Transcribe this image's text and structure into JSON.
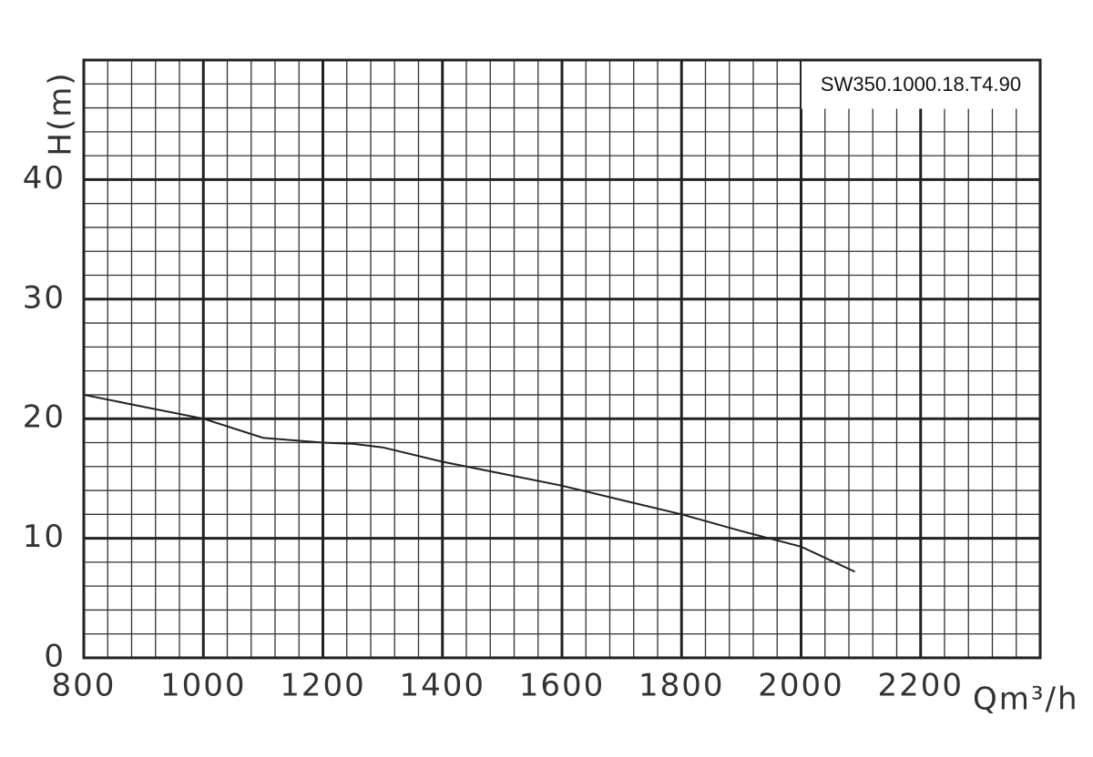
{
  "chart_data": {
    "type": "line",
    "annotation": "SW350.1000.18.T4.90",
    "xlabel": "Qm³/h",
    "ylabel": "H(m)",
    "x": [
      800,
      900,
      1000,
      1100,
      1200,
      1250,
      1300,
      1400,
      1500,
      1600,
      1700,
      1800,
      1900,
      2000,
      2090
    ],
    "values": [
      22,
      21,
      20,
      18.4,
      18,
      17.9,
      17.6,
      16.4,
      15.4,
      14.4,
      13.2,
      12,
      10.6,
      9.3,
      7.2
    ],
    "color": "#222",
    "xlim": [
      800,
      2400
    ],
    "ylim": [
      0,
      50
    ],
    "xticks": [
      800,
      1000,
      1200,
      1400,
      1600,
      1800,
      2000,
      2200
    ],
    "yticks": [
      0,
      10,
      20,
      30,
      40
    ],
    "xminorticks": [
      840,
      880,
      920,
      960,
      1040,
      1080,
      1120,
      1160,
      1240,
      1280,
      1320,
      1360,
      1440,
      1480,
      1520,
      1560,
      1640,
      1680,
      1720,
      1760,
      1840,
      1880,
      1920,
      1960,
      2040,
      2080,
      2120,
      2160,
      2240,
      2280,
      2320,
      2360
    ],
    "yminorticks": [
      2,
      4,
      6,
      8,
      12,
      14,
      16,
      18,
      22,
      24,
      26,
      28,
      32,
      34,
      36,
      38,
      42,
      44,
      46,
      48
    ],
    "grid": true
  }
}
